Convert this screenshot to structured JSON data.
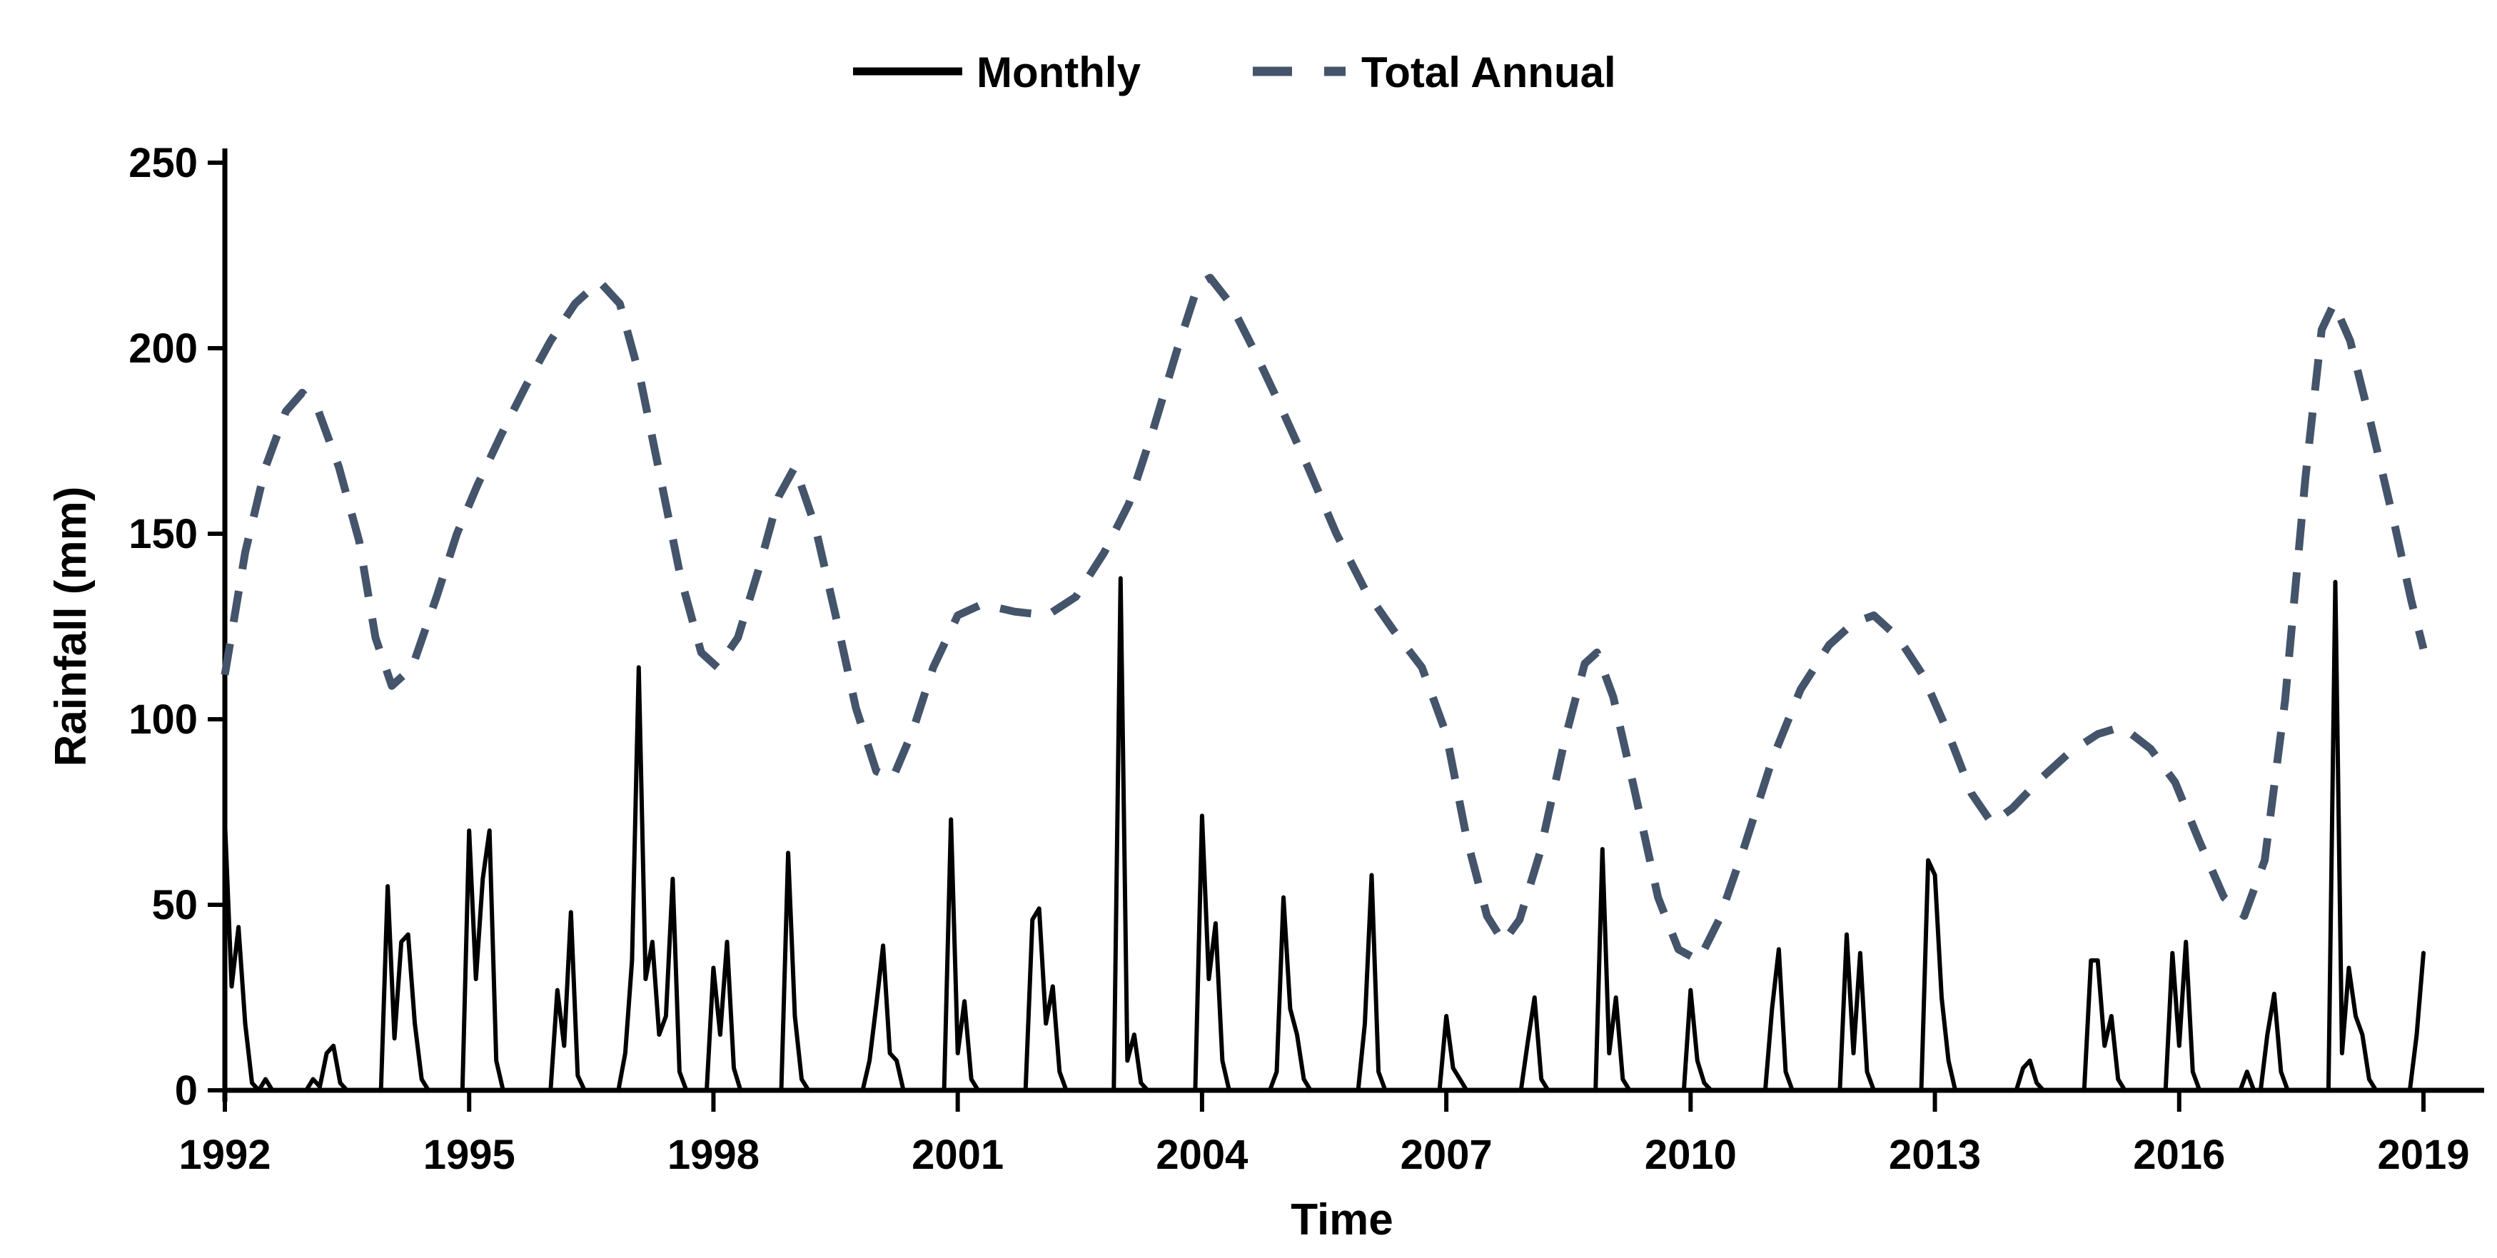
{
  "chart_data": {
    "type": "line",
    "title": "",
    "xlabel": "Time",
    "ylabel": "Rainfall (mm)",
    "xlim": [
      1992,
      2019
    ],
    "ylim": [
      0,
      250
    ],
    "x_tick_labels": [
      "1992",
      "1995",
      "1998",
      "2001",
      "2004",
      "2007",
      "2010",
      "2013",
      "2016",
      "2019"
    ],
    "x_tick_values": [
      1992,
      1995,
      1998,
      2001,
      2004,
      2007,
      2010,
      2013,
      2016,
      2019
    ],
    "y_tick_labels": [
      "0",
      "50",
      "100",
      "150",
      "200",
      "250"
    ],
    "y_tick_values": [
      0,
      50,
      100,
      150,
      200,
      250
    ],
    "grid": false,
    "legend_position": "top-center",
    "colors": {
      "monthly_line": "#000000",
      "annual_line": "#44546a",
      "axis": "#000000",
      "text": "#000000",
      "background": "#ffffff"
    },
    "series": [
      {
        "name": "Monthly",
        "style": "solid",
        "color": "#000000",
        "stroke_width": 6,
        "points": [
          [
            1992.0,
            73
          ],
          [
            1992.083,
            28
          ],
          [
            1992.167,
            44
          ],
          [
            1992.25,
            18
          ],
          [
            1992.333,
            2
          ],
          [
            1992.417,
            0
          ],
          [
            1992.5,
            3
          ],
          [
            1992.583,
            0
          ],
          [
            1993.0,
            0
          ],
          [
            1993.083,
            3
          ],
          [
            1993.167,
            1
          ],
          [
            1993.25,
            10
          ],
          [
            1993.333,
            12
          ],
          [
            1993.417,
            2
          ],
          [
            1993.5,
            0
          ],
          [
            1993.917,
            0
          ],
          [
            1994.0,
            55
          ],
          [
            1994.083,
            14
          ],
          [
            1994.167,
            40
          ],
          [
            1994.25,
            42
          ],
          [
            1994.333,
            18
          ],
          [
            1994.417,
            3
          ],
          [
            1994.5,
            0
          ],
          [
            1994.917,
            0
          ],
          [
            1995.0,
            70
          ],
          [
            1995.083,
            30
          ],
          [
            1995.167,
            57
          ],
          [
            1995.25,
            70
          ],
          [
            1995.333,
            8
          ],
          [
            1995.417,
            0
          ],
          [
            1996.0,
            0
          ],
          [
            1996.083,
            27
          ],
          [
            1996.167,
            12
          ],
          [
            1996.25,
            48
          ],
          [
            1996.333,
            4
          ],
          [
            1996.417,
            0
          ],
          [
            1996.833,
            0
          ],
          [
            1996.917,
            10
          ],
          [
            1997.0,
            35
          ],
          [
            1997.083,
            114
          ],
          [
            1997.167,
            30
          ],
          [
            1997.25,
            40
          ],
          [
            1997.333,
            15
          ],
          [
            1997.417,
            20
          ],
          [
            1997.5,
            57
          ],
          [
            1997.583,
            5
          ],
          [
            1997.667,
            0
          ],
          [
            1997.917,
            0
          ],
          [
            1998.0,
            33
          ],
          [
            1998.083,
            15
          ],
          [
            1998.167,
            40
          ],
          [
            1998.25,
            6
          ],
          [
            1998.333,
            0
          ],
          [
            1998.833,
            0
          ],
          [
            1998.917,
            64
          ],
          [
            1999.0,
            20
          ],
          [
            1999.083,
            3
          ],
          [
            1999.167,
            0
          ],
          [
            1999.833,
            0
          ],
          [
            1999.917,
            8
          ],
          [
            2000.0,
            23
          ],
          [
            2000.083,
            39
          ],
          [
            2000.167,
            10
          ],
          [
            2000.25,
            8
          ],
          [
            2000.333,
            0
          ],
          [
            2000.833,
            0
          ],
          [
            2000.917,
            73
          ],
          [
            2001.0,
            10
          ],
          [
            2001.083,
            24
          ],
          [
            2001.167,
            3
          ],
          [
            2001.25,
            0
          ],
          [
            2001.833,
            0
          ],
          [
            2001.917,
            46
          ],
          [
            2002.0,
            49
          ],
          [
            2002.083,
            18
          ],
          [
            2002.167,
            28
          ],
          [
            2002.25,
            5
          ],
          [
            2002.333,
            0
          ],
          [
            2002.917,
            0
          ],
          [
            2003.0,
            138
          ],
          [
            2003.083,
            8
          ],
          [
            2003.167,
            15
          ],
          [
            2003.25,
            2
          ],
          [
            2003.333,
            0
          ],
          [
            2003.917,
            0
          ],
          [
            2004.0,
            74
          ],
          [
            2004.083,
            30
          ],
          [
            2004.167,
            45
          ],
          [
            2004.25,
            8
          ],
          [
            2004.333,
            0
          ],
          [
            2004.833,
            0
          ],
          [
            2004.917,
            5
          ],
          [
            2005.0,
            52
          ],
          [
            2005.083,
            22
          ],
          [
            2005.167,
            15
          ],
          [
            2005.25,
            3
          ],
          [
            2005.333,
            0
          ],
          [
            2005.917,
            0
          ],
          [
            2006.0,
            18
          ],
          [
            2006.083,
            58
          ],
          [
            2006.167,
            5
          ],
          [
            2006.25,
            0
          ],
          [
            2006.917,
            0
          ],
          [
            2007.0,
            20
          ],
          [
            2007.083,
            6
          ],
          [
            2007.167,
            3
          ],
          [
            2007.25,
            0
          ],
          [
            2007.917,
            0
          ],
          [
            2008.0,
            13
          ],
          [
            2008.083,
            25
          ],
          [
            2008.167,
            3
          ],
          [
            2008.25,
            0
          ],
          [
            2008.833,
            0
          ],
          [
            2008.917,
            65
          ],
          [
            2009.0,
            10
          ],
          [
            2009.083,
            25
          ],
          [
            2009.167,
            3
          ],
          [
            2009.25,
            0
          ],
          [
            2009.917,
            0
          ],
          [
            2010.0,
            27
          ],
          [
            2010.083,
            8
          ],
          [
            2010.167,
            2
          ],
          [
            2010.25,
            0
          ],
          [
            2010.917,
            0
          ],
          [
            2011.0,
            22
          ],
          [
            2011.083,
            38
          ],
          [
            2011.167,
            5
          ],
          [
            2011.25,
            0
          ],
          [
            2011.833,
            0
          ],
          [
            2011.917,
            42
          ],
          [
            2012.0,
            10
          ],
          [
            2012.083,
            37
          ],
          [
            2012.167,
            5
          ],
          [
            2012.25,
            0
          ],
          [
            2012.833,
            0
          ],
          [
            2012.917,
            62
          ],
          [
            2013.0,
            58
          ],
          [
            2013.083,
            25
          ],
          [
            2013.167,
            8
          ],
          [
            2013.25,
            0
          ],
          [
            2014.0,
            0
          ],
          [
            2014.083,
            6
          ],
          [
            2014.167,
            8
          ],
          [
            2014.25,
            2
          ],
          [
            2014.333,
            0
          ],
          [
            2014.833,
            0
          ],
          [
            2014.917,
            35
          ],
          [
            2015.0,
            35
          ],
          [
            2015.083,
            12
          ],
          [
            2015.167,
            20
          ],
          [
            2015.25,
            3
          ],
          [
            2015.333,
            0
          ],
          [
            2015.833,
            0
          ],
          [
            2015.917,
            37
          ],
          [
            2016.0,
            12
          ],
          [
            2016.083,
            40
          ],
          [
            2016.167,
            5
          ],
          [
            2016.25,
            0
          ],
          [
            2016.75,
            0
          ],
          [
            2016.833,
            5
          ],
          [
            2016.917,
            0
          ],
          [
            2017.0,
            0
          ],
          [
            2017.083,
            15
          ],
          [
            2017.167,
            26
          ],
          [
            2017.25,
            5
          ],
          [
            2017.333,
            0
          ],
          [
            2017.833,
            0
          ],
          [
            2017.917,
            137
          ],
          [
            2018.0,
            10
          ],
          [
            2018.083,
            33
          ],
          [
            2018.167,
            20
          ],
          [
            2018.25,
            15
          ],
          [
            2018.333,
            3
          ],
          [
            2018.417,
            0
          ],
          [
            2018.833,
            0
          ],
          [
            2018.917,
            15
          ],
          [
            2019.0,
            37
          ]
        ]
      },
      {
        "name": "Total Annual",
        "style": "dashed",
        "color": "#44546a",
        "stroke_width": 11,
        "dash_array": "44 31",
        "points": [
          [
            1992.0,
            112
          ],
          [
            1992.25,
            145
          ],
          [
            1992.5,
            168
          ],
          [
            1992.75,
            183
          ],
          [
            1992.95,
            188
          ],
          [
            1993.15,
            183
          ],
          [
            1993.4,
            168
          ],
          [
            1993.65,
            148
          ],
          [
            1993.85,
            122
          ],
          [
            1994.05,
            109
          ],
          [
            1994.3,
            114
          ],
          [
            1994.6,
            133
          ],
          [
            1994.85,
            150
          ],
          [
            1995.1,
            163
          ],
          [
            1995.4,
            177
          ],
          [
            1995.7,
            190
          ],
          [
            1996.0,
            202
          ],
          [
            1996.3,
            212
          ],
          [
            1996.6,
            218
          ],
          [
            1996.85,
            212
          ],
          [
            1997.1,
            192
          ],
          [
            1997.35,
            165
          ],
          [
            1997.6,
            138
          ],
          [
            1997.85,
            118
          ],
          [
            1998.05,
            114
          ],
          [
            1998.3,
            122
          ],
          [
            1998.55,
            140
          ],
          [
            1998.8,
            160
          ],
          [
            1999.0,
            168
          ],
          [
            1999.25,
            152
          ],
          [
            1999.5,
            128
          ],
          [
            1999.75,
            103
          ],
          [
            2000.0,
            86
          ],
          [
            2000.2,
            84
          ],
          [
            2000.45,
            97
          ],
          [
            2000.7,
            114
          ],
          [
            2001.0,
            128
          ],
          [
            2001.3,
            131
          ],
          [
            2001.7,
            129
          ],
          [
            2002.1,
            128
          ],
          [
            2002.45,
            133
          ],
          [
            2002.8,
            145
          ],
          [
            2003.1,
            158
          ],
          [
            2003.4,
            178
          ],
          [
            2003.7,
            200
          ],
          [
            2003.95,
            217
          ],
          [
            2004.1,
            219
          ],
          [
            2004.35,
            212
          ],
          [
            2004.65,
            199
          ],
          [
            2004.95,
            185
          ],
          [
            2005.3,
            168
          ],
          [
            2005.65,
            150
          ],
          [
            2006.0,
            135
          ],
          [
            2006.35,
            124
          ],
          [
            2006.7,
            114
          ],
          [
            2007.0,
            96
          ],
          [
            2007.25,
            68
          ],
          [
            2007.5,
            47
          ],
          [
            2007.7,
            40
          ],
          [
            2007.9,
            46
          ],
          [
            2008.15,
            64
          ],
          [
            2008.45,
            94
          ],
          [
            2008.7,
            115
          ],
          [
            2008.85,
            118
          ],
          [
            2009.05,
            106
          ],
          [
            2009.3,
            82
          ],
          [
            2009.6,
            52
          ],
          [
            2009.85,
            38
          ],
          [
            2010.1,
            35
          ],
          [
            2010.35,
            46
          ],
          [
            2010.65,
            65
          ],
          [
            2011.0,
            89
          ],
          [
            2011.35,
            108
          ],
          [
            2011.7,
            120
          ],
          [
            2012.0,
            126
          ],
          [
            2012.25,
            128
          ],
          [
            2012.55,
            122
          ],
          [
            2012.85,
            112
          ],
          [
            2013.15,
            97
          ],
          [
            2013.45,
            80
          ],
          [
            2013.7,
            72
          ],
          [
            2013.95,
            76
          ],
          [
            2014.3,
            84
          ],
          [
            2014.65,
            91
          ],
          [
            2015.0,
            96
          ],
          [
            2015.3,
            98
          ],
          [
            2015.65,
            92
          ],
          [
            2015.95,
            83
          ],
          [
            2016.25,
            67
          ],
          [
            2016.55,
            52
          ],
          [
            2016.8,
            47
          ],
          [
            2017.05,
            62
          ],
          [
            2017.3,
            105
          ],
          [
            2017.55,
            165
          ],
          [
            2017.75,
            205
          ],
          [
            2017.9,
            212
          ],
          [
            2018.1,
            202
          ],
          [
            2018.35,
            180
          ],
          [
            2018.65,
            152
          ],
          [
            2018.85,
            132
          ],
          [
            2019.0,
            119
          ]
        ]
      }
    ]
  },
  "legend": {
    "items": [
      {
        "label": "Monthly",
        "marker": "solid-line"
      },
      {
        "label": "Total Annual",
        "marker": "dashed-line"
      }
    ]
  }
}
